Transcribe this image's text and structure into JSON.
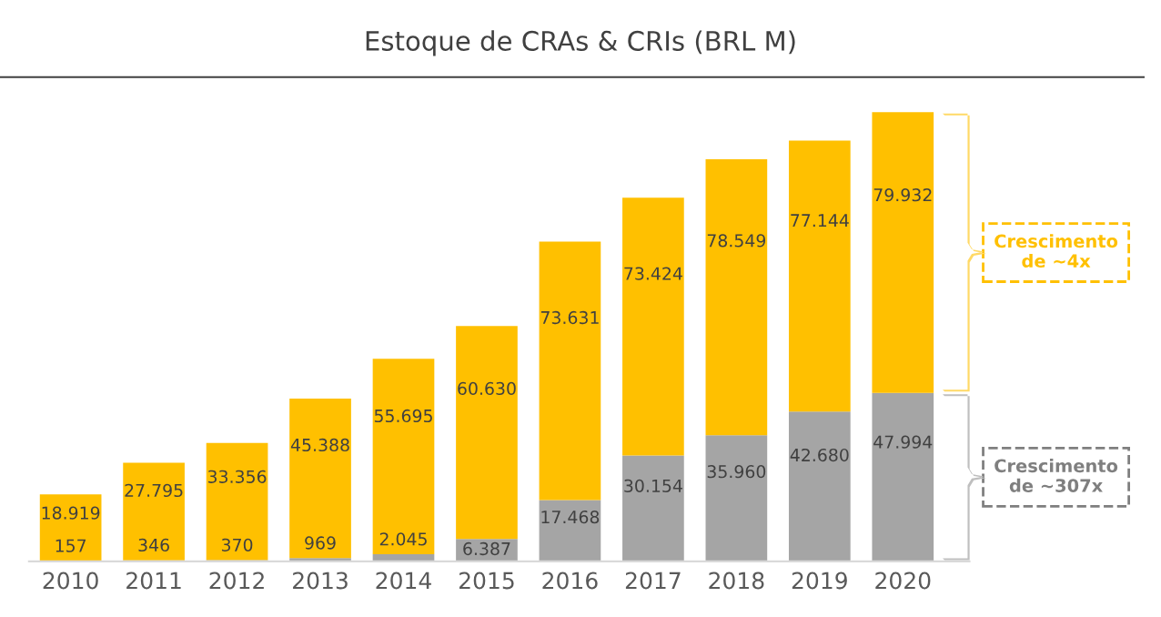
{
  "chart_data": {
    "type": "bar",
    "title": "Estoque de CRAs & CRIs (BRL M)",
    "stacked": true,
    "tick_labels": "x",
    "grid": false,
    "legend": false,
    "categories": [
      "2010",
      "2011",
      "2012",
      "2013",
      "2014",
      "2015",
      "2016",
      "2017",
      "2018",
      "2019",
      "2020"
    ],
    "series": [
      {
        "color": "#a5a5a5",
        "values": [
          157,
          346,
          370,
          969,
          2045,
          6387,
          17468,
          30154,
          35960,
          42680,
          47994
        ],
        "value_labels": [
          "157",
          "346",
          "370",
          "969",
          "2.045",
          "6.387",
          "17.468",
          "30.154",
          "35.960",
          "42.680",
          "47.994"
        ]
      },
      {
        "color": "#ffc000",
        "values": [
          18919,
          27795,
          33356,
          45388,
          55695,
          60630,
          73631,
          73424,
          78549,
          77144,
          79932
        ],
        "value_labels": [
          "18.919",
          "27.795",
          "33.356",
          "45.388",
          "55.695",
          "60.630",
          "73.631",
          "73.424",
          "78.549",
          "77.144",
          "79.932"
        ]
      }
    ],
    "annotations": [
      "Crescimento\nde ~4x",
      "Crescimento\nde ~307x"
    ]
  }
}
